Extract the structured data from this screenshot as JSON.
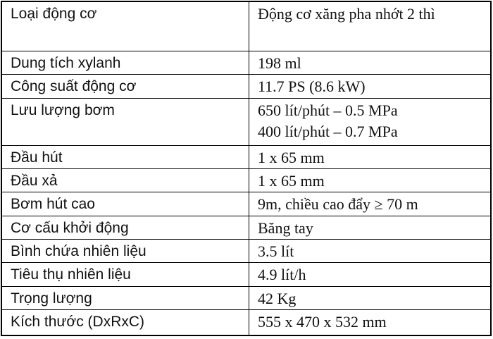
{
  "table": {
    "rows": [
      [
        "Loại động cơ",
        [
          "Động cơ xăng pha nhớt 2 thì"
        ]
      ],
      [
        "Dung tích xylanh",
        [
          "198 ml"
        ]
      ],
      [
        "Công suất động cơ",
        [
          "11.7 PS (8.6 kW)"
        ]
      ],
      [
        "Lưu lượng bơm",
        [
          "650 lít/phút – 0.5 MPa",
          "400 lít/phút – 0.7 MPa"
        ]
      ],
      [
        "Đầu hút",
        [
          "1 x 65 mm"
        ]
      ],
      [
        "Đầu xả",
        [
          "1 x 65 mm"
        ]
      ],
      [
        "Bơm hút cao",
        [
          "9m, chiều cao đẩy ≥ 70 m"
        ]
      ],
      [
        "Cơ cấu khởi động",
        [
          "Băng tay"
        ]
      ],
      [
        "Bình chứa nhiên liệu",
        [
          "3.5 lít"
        ]
      ],
      [
        "Tiêu thụ nhiên liệu",
        [
          "4.9 lít/h"
        ]
      ],
      [
        "Trọng lượng",
        [
          "42 Kg"
        ]
      ],
      [
        "Kích thước (DxRxC)",
        [
          "555 x 470 x 532 mm"
        ]
      ]
    ]
  }
}
